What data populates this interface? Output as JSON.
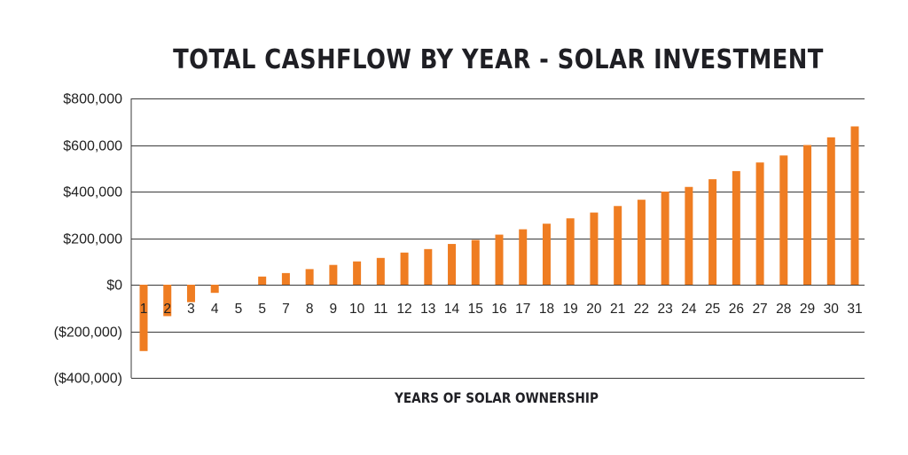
{
  "chart_data": {
    "type": "bar",
    "title": "TOTAL CASHFLOW BY YEAR - SOLAR INVESTMENT",
    "xlabel": "YEARS OF SOLAR OWNERSHIP",
    "ylabel": "",
    "ylim": [
      -400000,
      800000
    ],
    "yticks": [
      800000,
      600000,
      400000,
      200000,
      0,
      -200000,
      -400000
    ],
    "ytick_labels": [
      "$800,000",
      "$600,000",
      "$400,000",
      "$200,000",
      "$0",
      "($200,000)",
      "($400,000)"
    ],
    "grid": true,
    "categories": [
      "1",
      "2",
      "3",
      "4",
      "5",
      "5",
      "7",
      "8",
      "9",
      "10",
      "11",
      "12",
      "13",
      "14",
      "15",
      "16",
      "17",
      "18",
      "19",
      "20",
      "21",
      "22",
      "23",
      "24",
      "25",
      "26",
      "27",
      "28",
      "29",
      "30",
      "31"
    ],
    "values": [
      -285000,
      -135000,
      -75000,
      -35000,
      0,
      35000,
      50000,
      67000,
      85000,
      100000,
      115000,
      138000,
      153000,
      175000,
      192000,
      215000,
      238000,
      262000,
      285000,
      310000,
      338000,
      365000,
      400000,
      420000,
      453000,
      488000,
      525000,
      555000,
      600000,
      633000,
      680000
    ],
    "bar_color": "#ef7d22",
    "grid_color": "#3a3a3a",
    "text_color": "#222222"
  }
}
